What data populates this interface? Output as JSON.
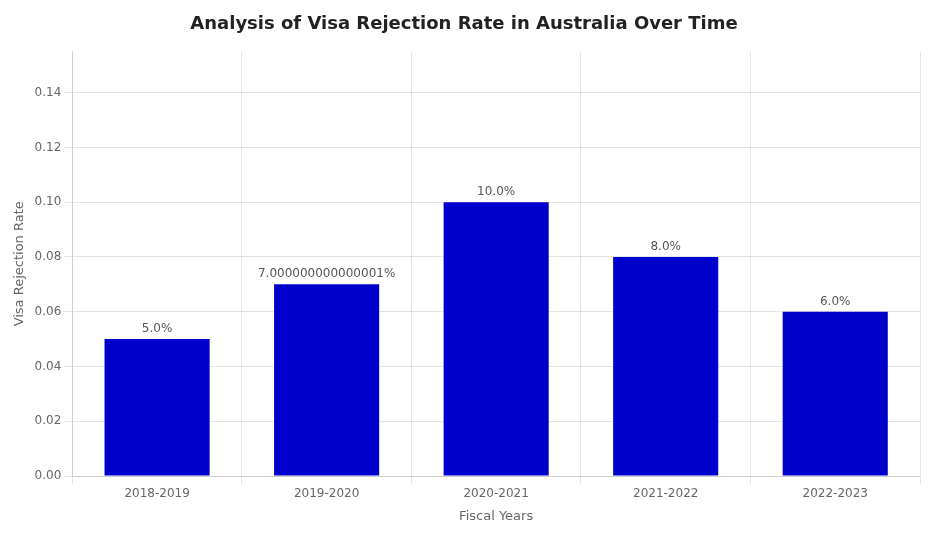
{
  "chart_data": {
    "type": "bar",
    "title": "Analysis of Visa Rejection Rate in Australia Over Time",
    "xlabel": "Fiscal Years",
    "ylabel": "Visa Rejection Rate",
    "categories": [
      "2018-2019",
      "2019-2020",
      "2020-2021",
      "2021-2022",
      "2022-2023"
    ],
    "values": [
      0.05,
      0.07,
      0.1,
      0.08,
      0.06
    ],
    "value_labels": [
      "5.0%",
      "7.000000000000001%",
      "10.0%",
      "8.0%",
      "6.0%"
    ],
    "data_labels": true,
    "color": "#0000CC",
    "ylim": [
      0,
      0.155
    ],
    "yticks": [
      {
        "value": 0,
        "label": "0.00"
      },
      0.02,
      0.04,
      0.06,
      0.08,
      {
        "value": 0.1,
        "label": "0.10"
      },
      0.12,
      0.14
    ],
    "grid": true
  }
}
